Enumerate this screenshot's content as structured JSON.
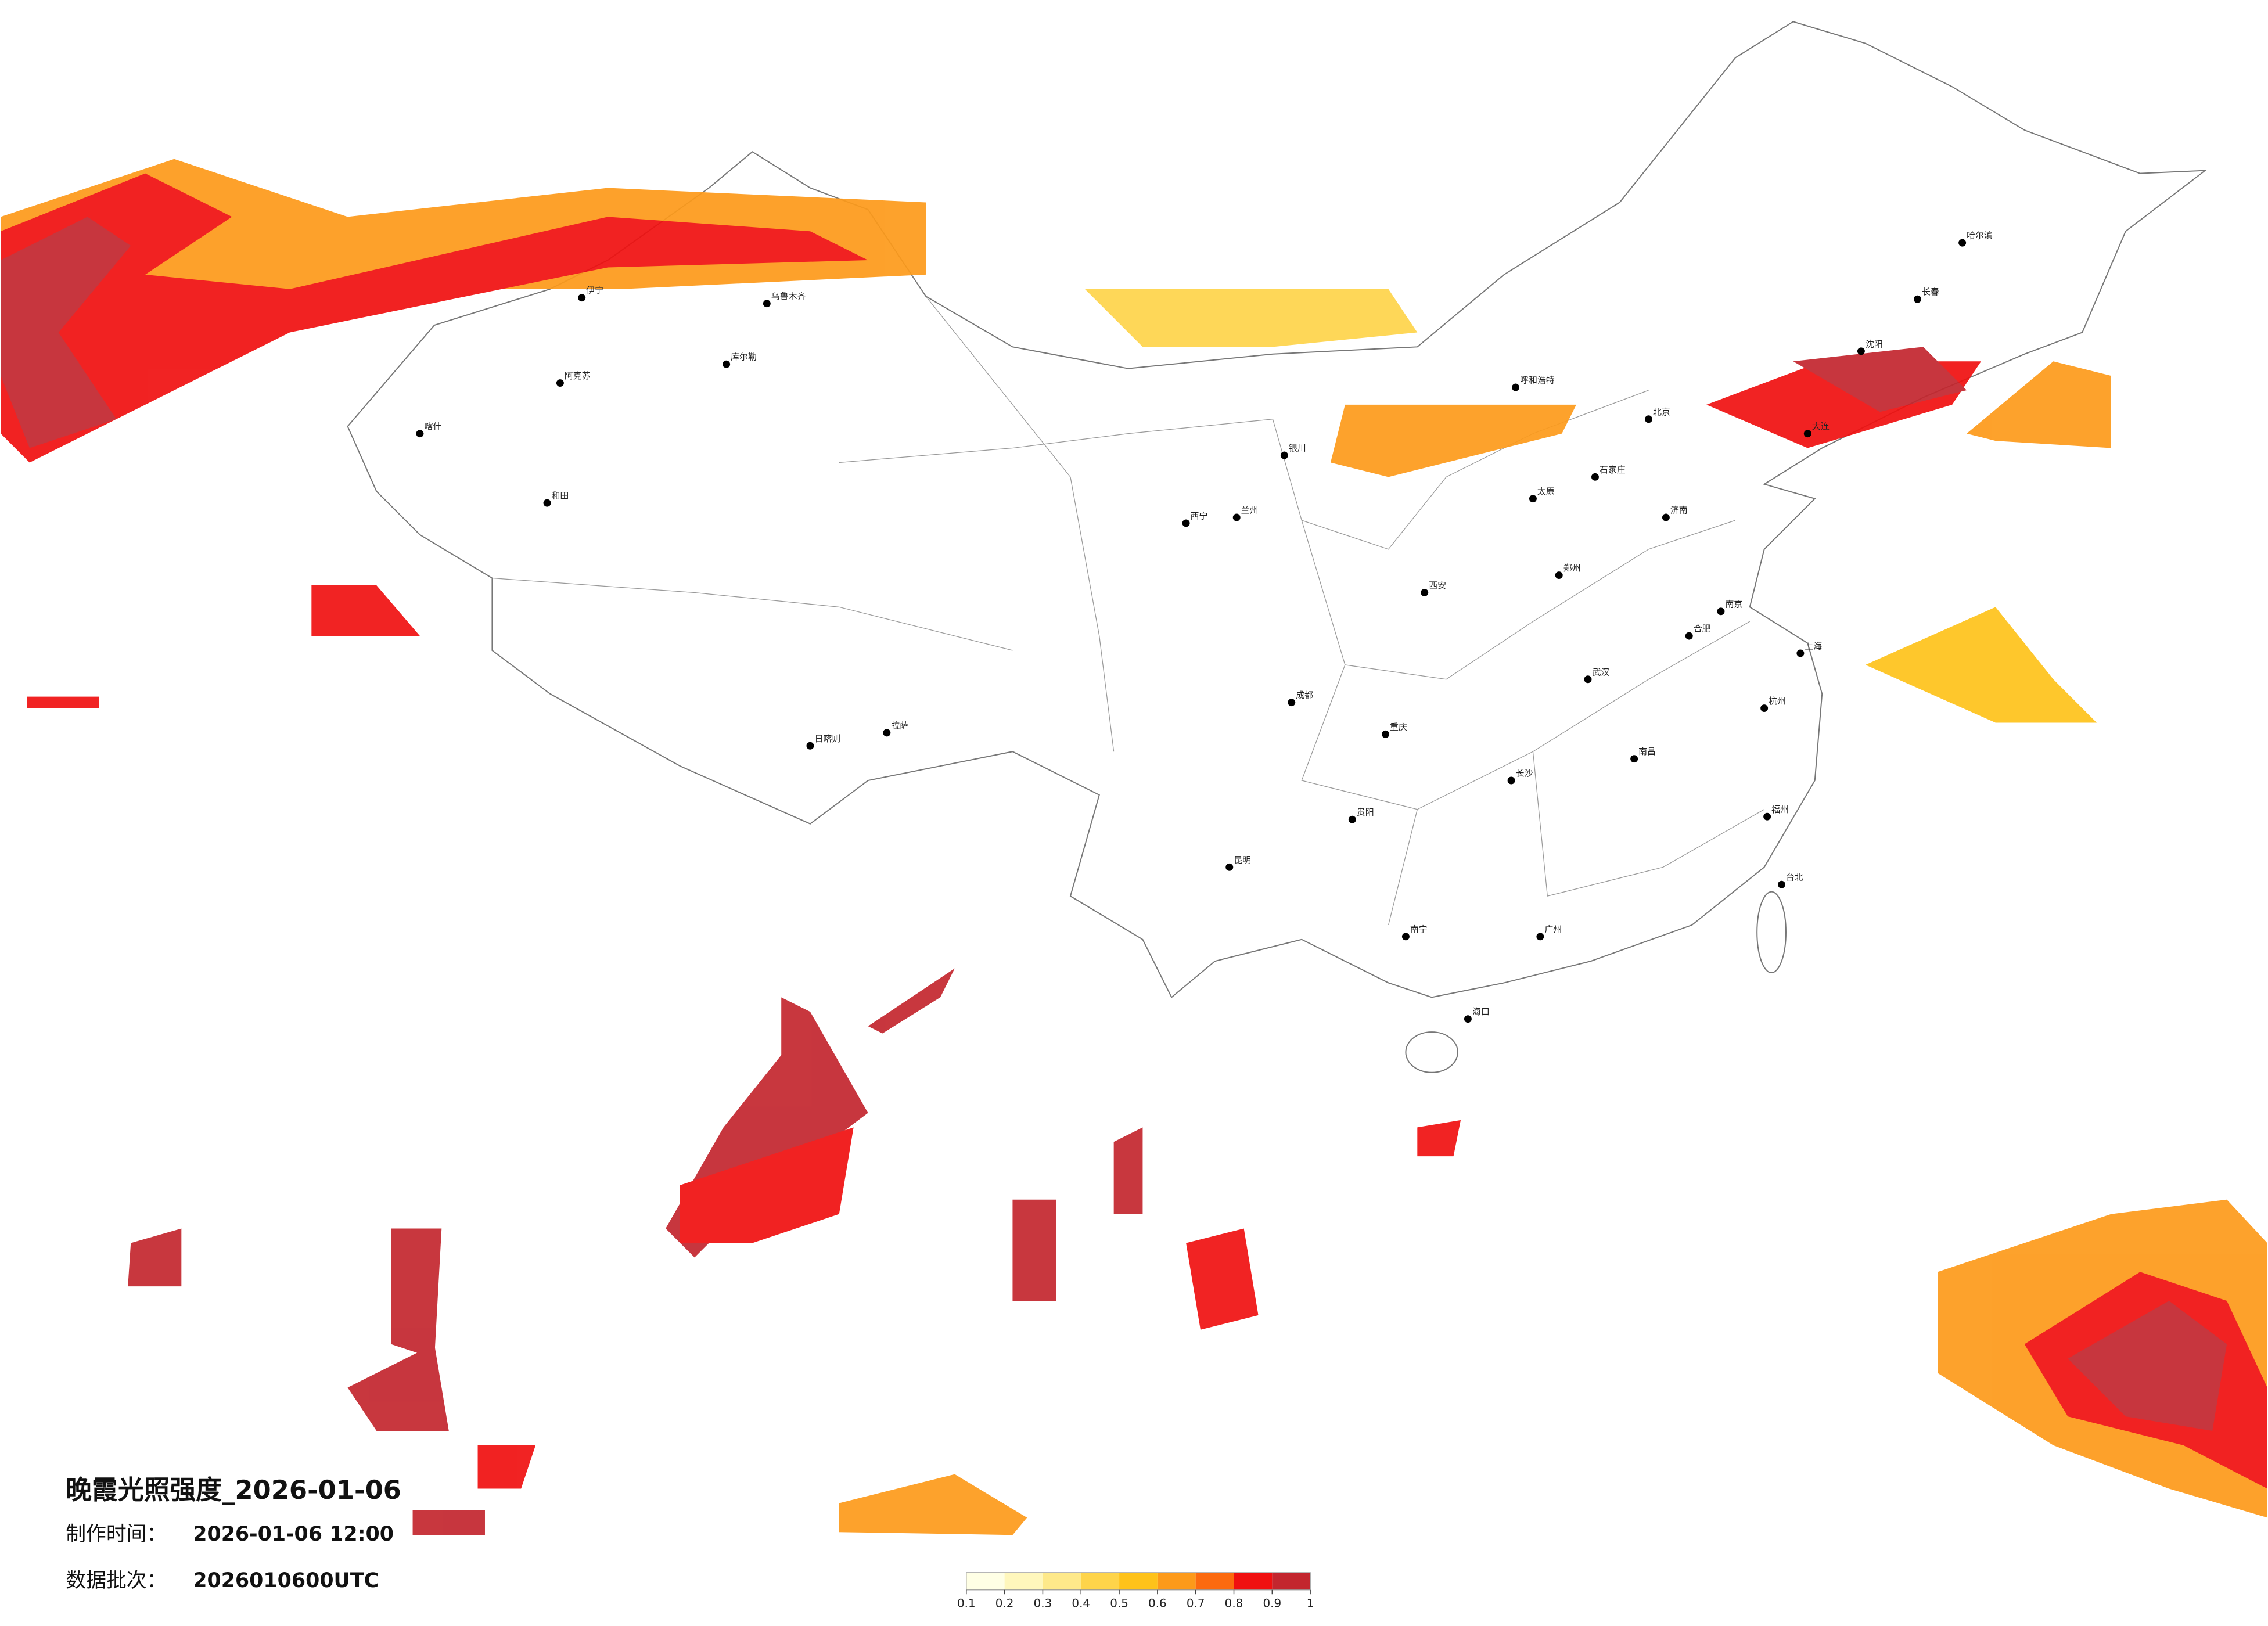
{
  "title": "晚霞光照强度_2026-01-06",
  "production": {
    "label": "制作时间：",
    "value": "2026-01-06 12:00"
  },
  "batch": {
    "label": "数据批次：",
    "value": "2026010600UTC"
  },
  "legend": {
    "ticks": [
      0.1,
      0.2,
      0.3,
      0.4,
      0.5,
      0.6,
      0.7,
      0.8,
      0.9,
      1
    ],
    "colors": [
      "#ffffe5",
      "#fff7bc",
      "#fee98a",
      "#fed44a",
      "#fec21a",
      "#fd9a1a",
      "#fc6a0f",
      "#f01010",
      "#c3262e"
    ]
  },
  "cities": [
    "哈尔滨",
    "长春",
    "沈阳",
    "大连",
    "北京",
    "石家庄",
    "太原",
    "呼和浩特",
    "济南",
    "郑州",
    "西安",
    "兰州",
    "西宁",
    "银川",
    "乌鲁木齐",
    "拉萨",
    "成都",
    "重庆",
    "贵阳",
    "昆明",
    "南宁",
    "广州",
    "长沙",
    "武汉",
    "南昌",
    "合肥",
    "南京",
    "上海",
    "杭州",
    "福州",
    "台北",
    "海口",
    "喀什",
    "和田",
    "库尔勒",
    "阿克苏",
    "伊宁",
    "日喀则"
  ]
}
